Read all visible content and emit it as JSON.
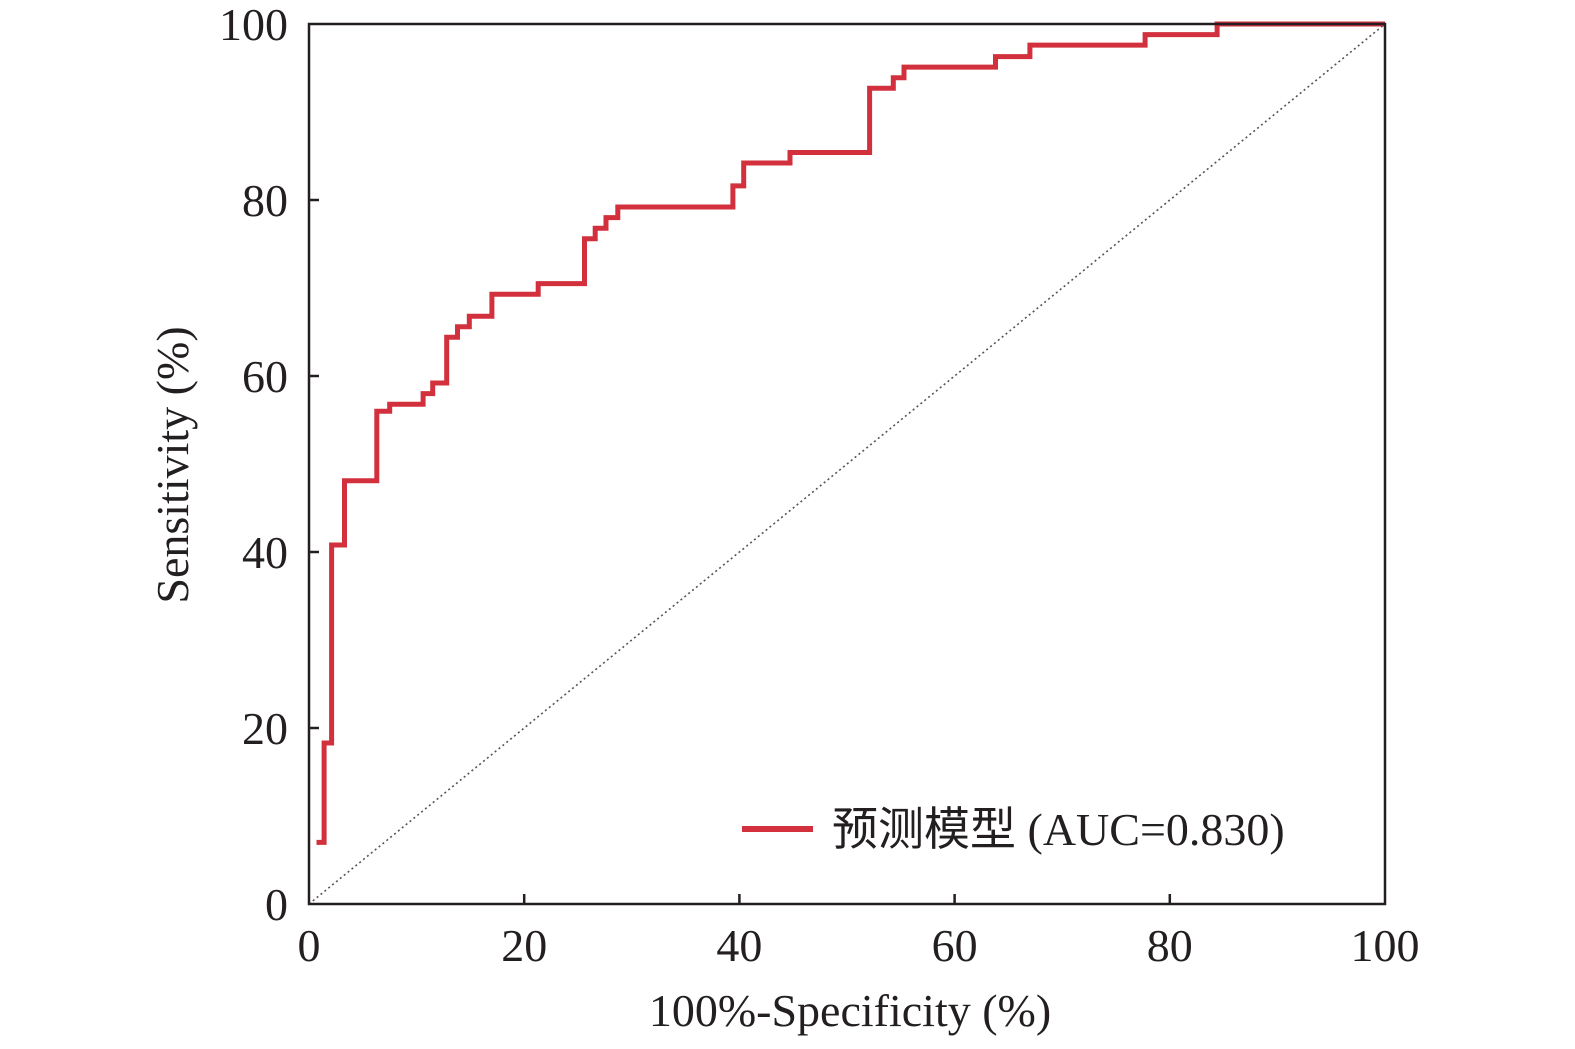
{
  "chart_data": {
    "type": "line",
    "title": "",
    "xlabel": "100%-Specificity (%)",
    "ylabel": "Sensitivity (%)",
    "xlim": [
      0,
      100
    ],
    "ylim": [
      0,
      100
    ],
    "x_ticks": [
      "0",
      "20",
      "40",
      "60",
      "80",
      "100"
    ],
    "y_ticks": [
      "0",
      "20",
      "40",
      "60",
      "80",
      "100"
    ],
    "grid": false,
    "legend_placement": "bottom-right",
    "series": [
      {
        "name": "预测模型 (AUC=0.830)",
        "color": "#d3303d",
        "step": true,
        "x": [
          0.7,
          1.4,
          1.4,
          2.1,
          2.1,
          3.3,
          3.3,
          6.3,
          6.3,
          7.5,
          7.5,
          10.6,
          10.6,
          11.5,
          11.5,
          12.8,
          12.8,
          13.8,
          13.8,
          14.9,
          14.9,
          17.0,
          17.0,
          21.3,
          21.3,
          25.6,
          25.6,
          26.6,
          26.6,
          27.6,
          27.6,
          28.7,
          28.7,
          39.4,
          39.4,
          40.4,
          40.4,
          44.7,
          44.7,
          52.1,
          52.1,
          54.3,
          54.3,
          55.3,
          55.3,
          63.8,
          63.8,
          67.0,
          67.0,
          77.7,
          77.7,
          84.4,
          84.4,
          100
        ],
        "y": [
          7.0,
          7.0,
          18.3,
          18.3,
          40.8,
          40.8,
          48.1,
          48.1,
          56.0,
          56.0,
          56.8,
          56.8,
          58.0,
          58.0,
          59.2,
          59.2,
          64.4,
          64.4,
          65.6,
          65.6,
          66.8,
          66.8,
          69.3,
          69.3,
          70.5,
          70.5,
          75.6,
          75.6,
          76.8,
          76.8,
          78.0,
          78.0,
          79.2,
          79.2,
          81.6,
          81.6,
          84.2,
          84.2,
          85.4,
          85.4,
          92.7,
          92.7,
          93.9,
          93.9,
          95.1,
          95.1,
          96.3,
          96.3,
          97.6,
          97.6,
          98.8,
          98.8,
          100,
          100
        ]
      },
      {
        "name": "",
        "color": "#555555",
        "dashed": true,
        "x": [
          0,
          100
        ],
        "y": [
          0,
          100
        ]
      }
    ]
  }
}
